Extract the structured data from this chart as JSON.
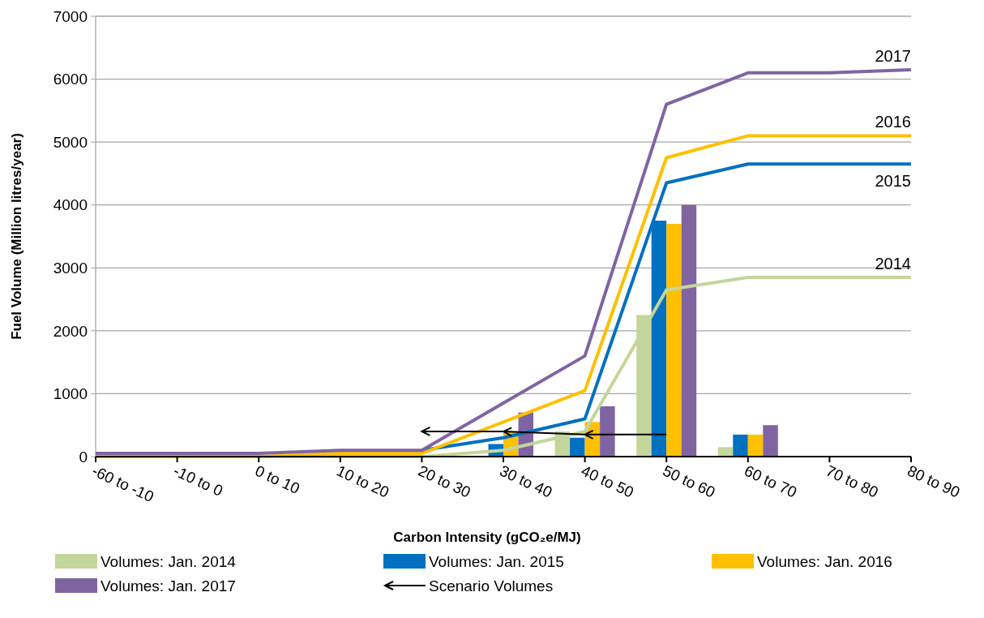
{
  "chart_data": {
    "type": "bar",
    "xlabel": "Carbon Intensity (gCO₂e/MJ)",
    "ylabel": "Fuel Volume (Million litres/year)",
    "categories": [
      "-60 to -10",
      "-10 to 0",
      "0 to 10",
      "10 to 20",
      "20 to 30",
      "30 to 40",
      "40 to 50",
      "50 to 60",
      "60 to 70",
      "70 to 80",
      "80 to 90"
    ],
    "series": [
      {
        "name": "Volumes: Jan. 2014",
        "color": "#c3d69b",
        "values": [
          0,
          0,
          0,
          0,
          0,
          0,
          400,
          2250,
          150,
          0,
          0
        ]
      },
      {
        "name": "Volumes: Jan. 2015",
        "color": "#0070c0",
        "values": [
          0,
          0,
          0,
          0,
          0,
          200,
          300,
          3750,
          350,
          0,
          0
        ]
      },
      {
        "name": "Volumes: Jan. 2016",
        "color": "#ffc000",
        "values": [
          0,
          0,
          0,
          0,
          0,
          400,
          550,
          3700,
          350,
          0,
          0
        ]
      },
      {
        "name": "Volumes: Jan. 2017",
        "color": "#8064a2",
        "values": [
          0,
          0,
          0,
          0,
          0,
          700,
          800,
          4000,
          500,
          0,
          0
        ]
      },
      {
        "type": "line",
        "name": "2014",
        "color": "#c3d69b",
        "values": [
          0,
          0,
          0,
          0,
          0,
          100,
          400,
          2650,
          2850,
          2850,
          2850
        ]
      },
      {
        "type": "line",
        "name": "2015",
        "color": "#0070c0",
        "values": [
          null,
          null,
          null,
          null,
          100,
          300,
          600,
          4350,
          4650,
          4650,
          4650
        ]
      },
      {
        "type": "line",
        "name": "2016",
        "color": "#ffc000",
        "values": [
          0,
          0,
          0,
          50,
          50,
          550,
          1050,
          4750,
          5100,
          5100,
          5100
        ]
      },
      {
        "type": "line",
        "name": "2017",
        "color": "#8064a2",
        "values": [
          50,
          50,
          50,
          100,
          100,
          850,
          1600,
          5600,
          6100,
          6100,
          6150
        ]
      },
      {
        "type": "line",
        "name": "Scenario Volumes",
        "color": "#000000",
        "values": [
          null,
          null,
          null,
          null,
          400,
          400,
          350,
          350,
          null,
          null,
          null
        ]
      }
    ],
    "ylim": [
      0,
      7000
    ],
    "yticks": [
      0,
      1000,
      2000,
      3000,
      4000,
      5000,
      6000,
      7000
    ],
    "grid": "y",
    "legend": "bottom"
  }
}
